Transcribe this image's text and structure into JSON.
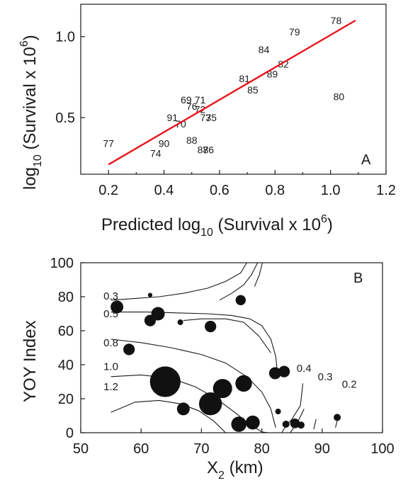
{
  "chart_data": [
    {
      "type": "scatter",
      "panel_label": "A",
      "xlabel": "Predicted log",
      "xlabel_sub": "10",
      "xlabel_rest": " (Survival x 10",
      "xlabel_sup": "6",
      "xlabel_end": ")",
      "ylabel": "log",
      "ylabel_sub": "10",
      "ylabel_rest": " (Survival x 10",
      "ylabel_sup": "6",
      "ylabel_end": ")",
      "xlim": [
        0.1,
        1.2
      ],
      "ylim": [
        0.15,
        1.2
      ],
      "xticks": [
        "0.2",
        "0.4",
        "0.6",
        "0.8",
        "1.0",
        "1.2"
      ],
      "xtick_values": [
        0.2,
        0.4,
        0.6,
        0.8,
        1.0,
        1.2
      ],
      "yticks": [
        "0.5",
        "1.0"
      ],
      "ytick_values": [
        0.5,
        1.0
      ],
      "points": [
        {
          "label": "78",
          "x": 1.02,
          "y": 1.1
        },
        {
          "label": "79",
          "x": 0.87,
          "y": 1.03
        },
        {
          "label": "84",
          "x": 0.76,
          "y": 0.92
        },
        {
          "label": "82",
          "x": 0.83,
          "y": 0.83
        },
        {
          "label": "89",
          "x": 0.79,
          "y": 0.77
        },
        {
          "label": "81",
          "x": 0.69,
          "y": 0.74
        },
        {
          "label": "85",
          "x": 0.72,
          "y": 0.67
        },
        {
          "label": "80",
          "x": 1.03,
          "y": 0.63
        },
        {
          "label": "69",
          "x": 0.48,
          "y": 0.61
        },
        {
          "label": "71",
          "x": 0.53,
          "y": 0.61
        },
        {
          "label": "76",
          "x": 0.5,
          "y": 0.57
        },
        {
          "label": "72",
          "x": 0.53,
          "y": 0.55
        },
        {
          "label": "91",
          "x": 0.43,
          "y": 0.5
        },
        {
          "label": "73",
          "x": 0.55,
          "y": 0.5
        },
        {
          "label": "75",
          "x": 0.57,
          "y": 0.5
        },
        {
          "label": "70",
          "x": 0.46,
          "y": 0.46
        },
        {
          "label": "77",
          "x": 0.2,
          "y": 0.34
        },
        {
          "label": "90",
          "x": 0.4,
          "y": 0.34
        },
        {
          "label": "88",
          "x": 0.5,
          "y": 0.36
        },
        {
          "label": "87",
          "x": 0.54,
          "y": 0.3
        },
        {
          "label": "86",
          "x": 0.56,
          "y": 0.3
        },
        {
          "label": "74",
          "x": 0.37,
          "y": 0.28
        }
      ],
      "fit_line": {
        "x": [
          0.2,
          1.09
        ],
        "y": [
          0.21,
          1.1
        ],
        "color": "#e8141c"
      }
    },
    {
      "type": "scatter",
      "panel_label": "B",
      "xlabel": "X",
      "xlabel_sub": "2",
      "xlabel_rest": " (km)",
      "ylabel": "YOY Index",
      "xlim": [
        50,
        100
      ],
      "ylim": [
        0,
        100
      ],
      "xticks": [
        "50",
        "60",
        "70",
        "80",
        "90",
        "100"
      ],
      "xtick_values": [
        50,
        60,
        70,
        80,
        90,
        100
      ],
      "yticks": [
        "0",
        "20",
        "40",
        "60",
        "80",
        "100"
      ],
      "ytick_values": [
        0,
        20,
        40,
        60,
        80,
        100
      ],
      "bubble_size_unit": "relative",
      "bubbles": [
        {
          "x": 56.0,
          "y": 74.0,
          "size": 1.0
        },
        {
          "x": 61.5,
          "y": 81.0,
          "size": 0.35
        },
        {
          "x": 61.5,
          "y": 66.0,
          "size": 0.9
        },
        {
          "x": 62.8,
          "y": 70.0,
          "size": 1.05
        },
        {
          "x": 66.5,
          "y": 65.0,
          "size": 0.45
        },
        {
          "x": 71.5,
          "y": 62.5,
          "size": 0.9
        },
        {
          "x": 76.5,
          "y": 78.0,
          "size": 0.8
        },
        {
          "x": 58.0,
          "y": 49.0,
          "size": 0.9
        },
        {
          "x": 64.0,
          "y": 30.0,
          "size": 2.4
        },
        {
          "x": 67.0,
          "y": 14.0,
          "size": 1.0
        },
        {
          "x": 71.5,
          "y": 17.0,
          "size": 1.8
        },
        {
          "x": 73.5,
          "y": 26.0,
          "size": 1.5
        },
        {
          "x": 76.2,
          "y": 5.0,
          "size": 1.2
        },
        {
          "x": 77.0,
          "y": 29.0,
          "size": 1.3
        },
        {
          "x": 78.5,
          "y": 6.0,
          "size": 1.1
        },
        {
          "x": 82.2,
          "y": 35.0,
          "size": 0.95
        },
        {
          "x": 83.7,
          "y": 36.0,
          "size": 0.9
        },
        {
          "x": 82.7,
          "y": 12.5,
          "size": 0.45
        },
        {
          "x": 84.0,
          "y": 5.0,
          "size": 0.55
        },
        {
          "x": 85.5,
          "y": 5.5,
          "size": 0.75
        },
        {
          "x": 86.5,
          "y": 4.5,
          "size": 0.55
        },
        {
          "x": 92.5,
          "y": 9.0,
          "size": 0.55
        }
      ],
      "contours": [
        {
          "label": "0.3",
          "x": [
            55,
            59,
            63,
            67,
            71,
            74,
            76.5,
            77.5
          ],
          "y": [
            78,
            79,
            80,
            82,
            85,
            89,
            94,
            100
          ]
        },
        {
          "label": "0.5",
          "x": [
            55,
            61,
            66,
            71,
            75,
            78,
            80,
            81.5,
            82.3,
            82.6
          ],
          "y": [
            71,
            71,
            70.5,
            70,
            69,
            67,
            63,
            55,
            45,
            35
          ]
        },
        {
          "label": "0.8",
          "x": [
            55,
            60,
            65,
            70,
            74,
            77.5,
            80,
            81.5,
            82.3
          ],
          "y": [
            55,
            53,
            50,
            46,
            41,
            33,
            24,
            14,
            3
          ]
        },
        {
          "label": "1.0",
          "x": [
            55,
            60,
            65,
            69,
            72.5,
            75.5,
            78,
            80,
            81
          ],
          "y": [
            33,
            34,
            32,
            27,
            20,
            12,
            5,
            0.5,
            0
          ]
        },
        {
          "label": "1.2",
          "x": [
            55,
            59,
            63,
            66.5,
            69.5,
            72,
            74
          ],
          "y": [
            12,
            18,
            19,
            17,
            13,
            7,
            0
          ]
        },
        {
          "label": "",
          "x": [
            67,
            70,
            74,
            77,
            79.5,
            81.5
          ],
          "y": [
            66,
            67,
            67,
            65,
            57,
            47
          ]
        },
        {
          "label": "",
          "x": [
            73,
            75,
            77,
            78.3,
            79.3
          ],
          "y": [
            78,
            82,
            87,
            93,
            100
          ]
        },
        {
          "label": "",
          "x": [
            78.8,
            79.6,
            80.1
          ],
          "y": [
            86,
            93,
            100
          ]
        },
        {
          "label": "",
          "x": [
            83.3,
            84,
            85,
            86.4,
            86.8
          ],
          "y": [
            0,
            4,
            8,
            16,
            29
          ]
        },
        {
          "label": "0.4",
          "x": [
            84.7,
            85.9,
            86.6,
            87.0
          ],
          "y": [
            0,
            6,
            11,
            14
          ]
        },
        {
          "label": "0.3",
          "x": [
            88.6,
            88.8,
            89.0
          ],
          "y": [
            2,
            5,
            8
          ]
        },
        {
          "label": "0.2",
          "x": [
            92.2,
            92.5,
            92.9
          ],
          "y": [
            3,
            7,
            9
          ]
        }
      ],
      "contour_label_positions": [
        {
          "label": "0.3",
          "x": 55.0,
          "y": 80.5
        },
        {
          "label": "0.5",
          "x": 55.0,
          "y": 70.0
        },
        {
          "label": "0.8",
          "x": 55.0,
          "y": 53.0
        },
        {
          "label": "1.0",
          "x": 55.0,
          "y": 39.0
        },
        {
          "label": "1.2",
          "x": 55.0,
          "y": 27.0
        },
        {
          "label": "0.4",
          "x": 87.0,
          "y": 38.0
        },
        {
          "label": "0.3",
          "x": 90.5,
          "y": 33.0
        },
        {
          "label": "0.2",
          "x": 94.5,
          "y": 28.5
        }
      ]
    }
  ]
}
